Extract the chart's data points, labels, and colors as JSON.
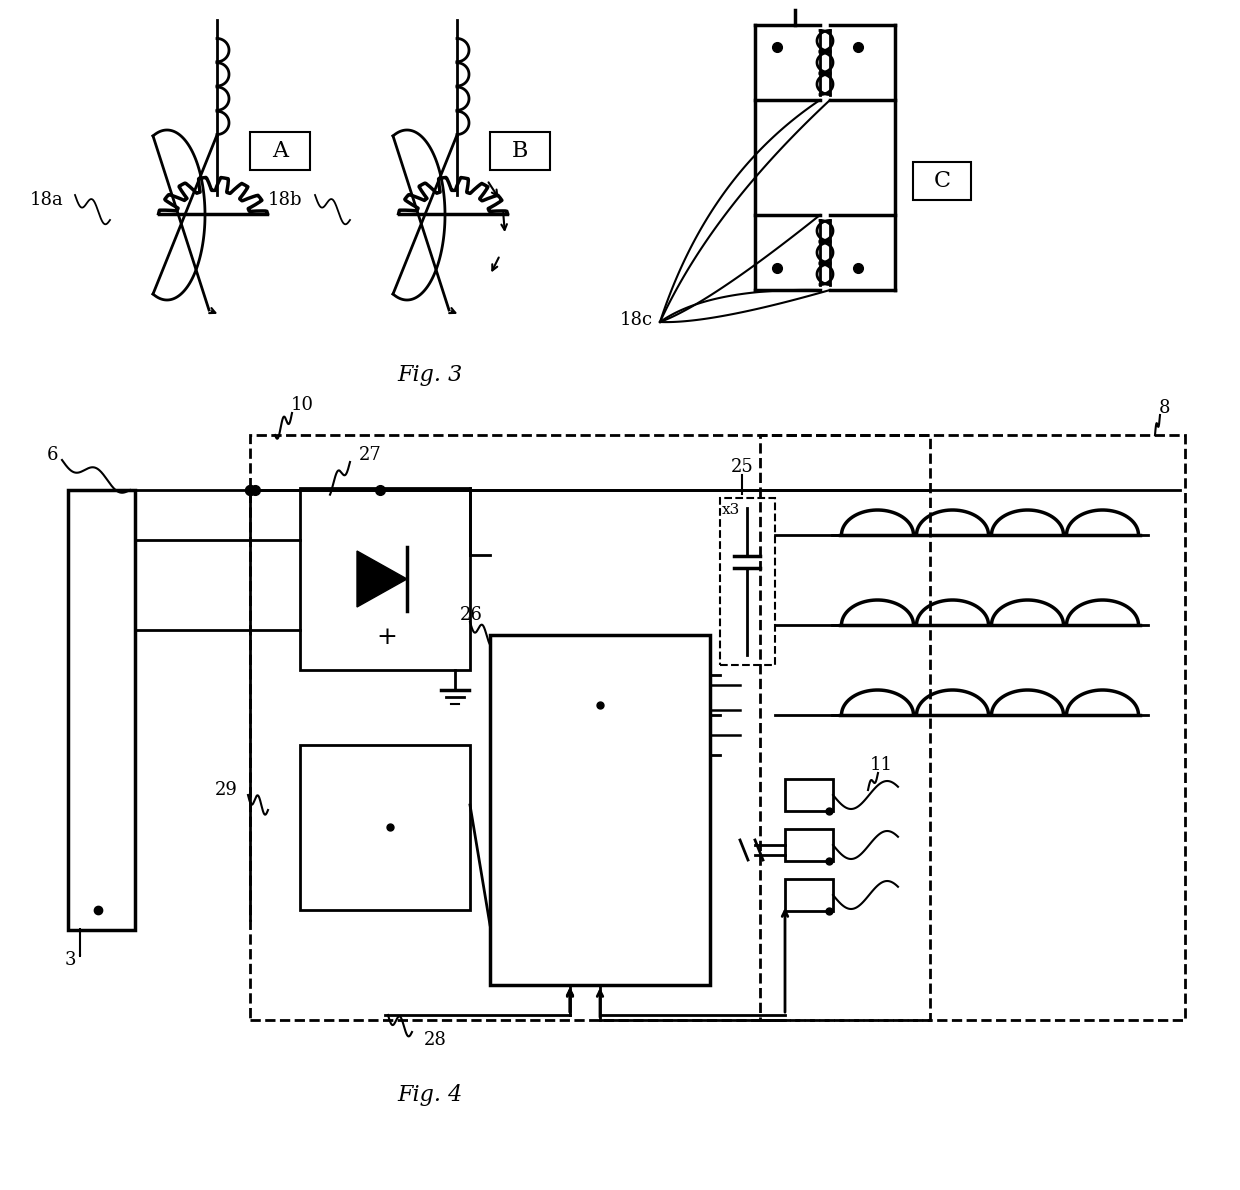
{
  "fig3_title": "Fig. 3",
  "fig4_title": "Fig. 4",
  "background_color": "#ffffff",
  "line_color": "#000000",
  "label_A": "A",
  "label_B": "B",
  "label_C": "C",
  "label_18a": "18a",
  "label_18b": "18b",
  "label_18c": "18c",
  "label_3": "3",
  "label_6": "6",
  "label_8": "8",
  "label_10": "10",
  "label_11": "11",
  "label_25": "25",
  "label_26": "26",
  "label_27": "27",
  "label_28": "28",
  "label_29": "29",
  "label_x3": "x3"
}
